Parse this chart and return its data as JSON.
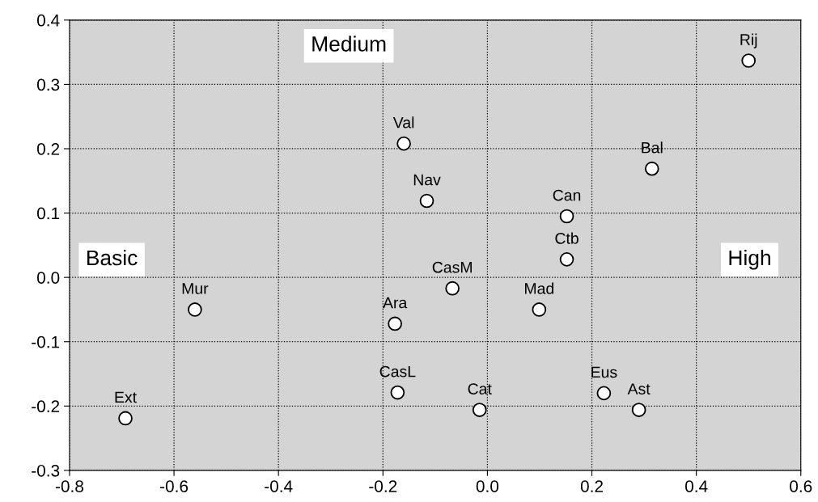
{
  "chart_data": {
    "type": "scatter",
    "x": [
      0.5,
      0.315,
      -0.16,
      -0.116,
      0.152,
      0.152,
      -0.067,
      0.099,
      -0.56,
      -0.177,
      -0.172,
      -0.015,
      0.223,
      0.29,
      -0.693
    ],
    "series": [
      {
        "color": "#ffffff",
        "values": [
          0.337,
          0.169,
          0.208,
          0.119,
          0.095,
          0.028,
          -0.017,
          -0.05,
          -0.05,
          -0.072,
          -0.179,
          -0.206,
          -0.18,
          -0.206,
          -0.219
        ]
      }
    ],
    "marker": "circle",
    "grid": true,
    "xlim": [
      -0.8,
      0.6
    ],
    "xticks": [
      {
        "value": -0.8,
        "label": "-0.8"
      },
      {
        "value": -0.6,
        "label": "-0.6"
      },
      {
        "value": -0.4,
        "label": "-0.4"
      },
      {
        "value": -0.2,
        "label": "-0.2"
      },
      {
        "value": 0.0,
        "label": "0.0"
      },
      {
        "value": 0.2,
        "label": "0.2"
      },
      {
        "value": 0.4,
        "label": "0.4"
      },
      {
        "value": 0.6,
        "label": "0.6"
      }
    ],
    "ylim": [
      -0.3,
      0.4
    ],
    "yticks": [
      {
        "value": -0.3,
        "label": "-0.3"
      },
      {
        "value": -0.2,
        "label": "-0.2"
      },
      {
        "value": -0.1,
        "label": "-0.1"
      },
      {
        "value": 0.0,
        "label": "0.0"
      },
      {
        "value": 0.1,
        "label": "0.1"
      },
      {
        "value": 0.2,
        "label": "0.2"
      },
      {
        "value": 0.3,
        "label": "0.3"
      },
      {
        "value": 0.4,
        "label": "0.4"
      }
    ],
    "annotations": [
      {
        "text": "Rij",
        "x": 0.5,
        "y": 0.337
      },
      {
        "text": "Bal",
        "x": 0.315,
        "y": 0.169
      },
      {
        "text": "Val",
        "x": -0.16,
        "y": 0.208
      },
      {
        "text": "Nav",
        "x": -0.116,
        "y": 0.119
      },
      {
        "text": "Can",
        "x": 0.152,
        "y": 0.095
      },
      {
        "text": "Ctb",
        "x": 0.152,
        "y": 0.028
      },
      {
        "text": "CasM",
        "x": -0.067,
        "y": -0.017
      },
      {
        "text": "Mad",
        "x": 0.099,
        "y": -0.05
      },
      {
        "text": "Mur",
        "x": -0.56,
        "y": -0.05
      },
      {
        "text": "Ara",
        "x": -0.177,
        "y": -0.072
      },
      {
        "text": "CasL",
        "x": -0.172,
        "y": -0.179
      },
      {
        "text": "Cat",
        "x": -0.015,
        "y": -0.206
      },
      {
        "text": "Eus",
        "x": 0.223,
        "y": -0.18
      },
      {
        "text": "Ast",
        "x": 0.29,
        "y": -0.206
      },
      {
        "text": "Ext",
        "x": -0.693,
        "y": -0.219
      },
      "Basic",
      "Medium",
      "High"
    ]
  }
}
